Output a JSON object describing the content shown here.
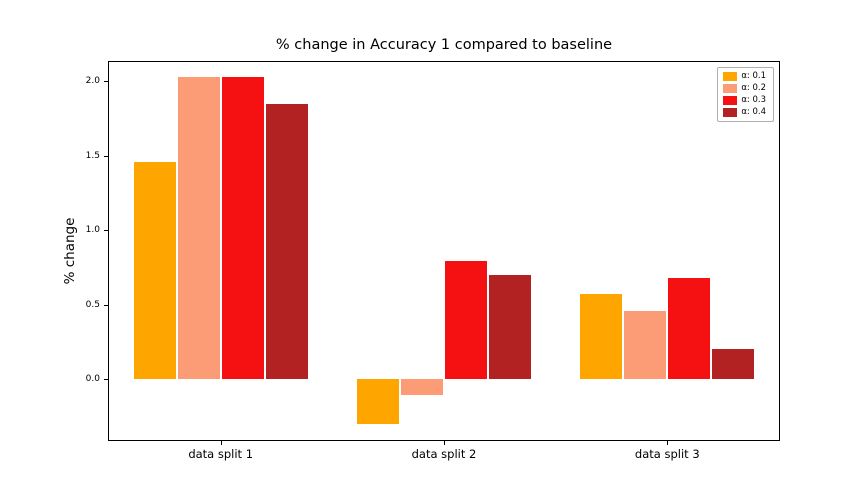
{
  "chart_data": {
    "type": "bar",
    "title": "% change in Accuracy 1 compared to baseline",
    "xlabel": "",
    "ylabel": "% change",
    "categories": [
      "data split 1",
      "data split 2",
      "data split 3"
    ],
    "series": [
      {
        "name": "α: 0.1",
        "color": "#FFA500",
        "values": [
          1.46,
          -0.3,
          0.57
        ]
      },
      {
        "name": "α: 0.2",
        "color": "#FC9C76",
        "values": [
          2.03,
          -0.11,
          0.46
        ]
      },
      {
        "name": "α: 0.3",
        "color": "#F51111",
        "values": [
          2.03,
          0.79,
          0.68
        ]
      },
      {
        "name": "α: 0.4",
        "color": "#B22222",
        "values": [
          1.85,
          0.7,
          0.2
        ]
      }
    ],
    "ylim": [
      -0.41,
      2.13
    ],
    "yticks": [
      0.0,
      0.5,
      1.0,
      1.5,
      2.0
    ],
    "legend_position": "upper right",
    "grid": false
  }
}
